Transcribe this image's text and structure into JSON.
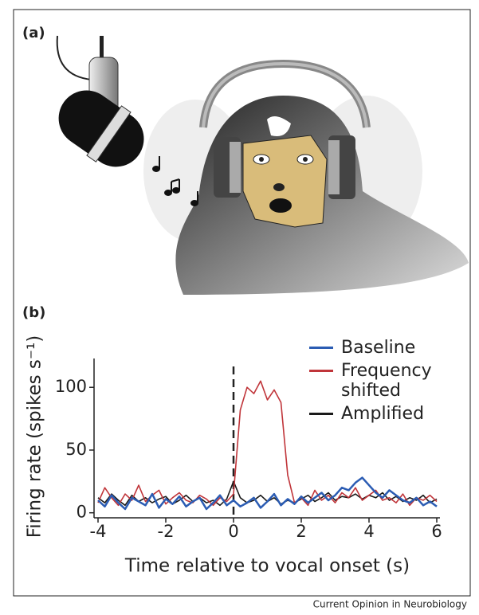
{
  "panel_a_label": "(a)",
  "panel_b_label": "(b)",
  "footer": "Current Opinion in Neurobiology",
  "chart_data": {
    "type": "line",
    "x_label": "Time relative to vocal onset (s)",
    "y_label": "Firing rate (spikes s⁻¹)",
    "x": [
      -4,
      -3.8,
      -3.6,
      -3.4,
      -3.2,
      -3,
      -2.8,
      -2.6,
      -2.4,
      -2.2,
      -2,
      -1.8,
      -1.6,
      -1.4,
      -1.2,
      -1,
      -0.8,
      -0.6,
      -0.4,
      -0.2,
      0,
      0.2,
      0.4,
      0.6,
      0.8,
      1,
      1.2,
      1.4,
      1.6,
      1.8,
      2,
      2.2,
      2.4,
      2.6,
      2.8,
      3,
      3.2,
      3.4,
      3.6,
      3.8,
      4,
      4.2,
      4.4,
      4.6,
      4.8,
      5,
      5.2,
      5.4,
      5.6,
      5.8,
      6
    ],
    "series": [
      {
        "name": "Baseline",
        "color": "#2b5cb3",
        "values": [
          10,
          5,
          14,
          8,
          3,
          12,
          9,
          6,
          15,
          4,
          11,
          7,
          13,
          5,
          9,
          12,
          3,
          8,
          14,
          6,
          10,
          5,
          8,
          12,
          4,
          9,
          15,
          6,
          11,
          7,
          13,
          8,
          12,
          16,
          10,
          14,
          20,
          18,
          24,
          28,
          22,
          16,
          12,
          18,
          14,
          10,
          8,
          12,
          6,
          9,
          5
        ]
      },
      {
        "name": "Frequency shifted",
        "color": "#c0353a",
        "values": [
          8,
          20,
          12,
          6,
          15,
          10,
          22,
          9,
          14,
          18,
          7,
          12,
          16,
          10,
          8,
          14,
          11,
          6,
          12,
          9,
          15,
          82,
          100,
          95,
          105,
          90,
          98,
          88,
          30,
          8,
          12,
          6,
          18,
          10,
          14,
          8,
          16,
          12,
          20,
          10,
          14,
          18,
          10,
          12,
          8,
          15,
          6,
          12,
          10,
          14,
          9
        ]
      },
      {
        "name": "Amplified",
        "color": "#1a1a1a",
        "values": [
          12,
          8,
          15,
          10,
          6,
          14,
          9,
          12,
          8,
          11,
          13,
          7,
          10,
          14,
          9,
          12,
          8,
          10,
          6,
          11,
          25,
          12,
          8,
          10,
          14,
          9,
          12,
          7,
          10,
          8,
          11,
          14,
          9,
          12,
          16,
          10,
          13,
          12,
          15,
          11,
          14,
          12,
          16,
          10,
          13,
          9,
          12,
          10,
          14,
          8,
          11
        ]
      }
    ],
    "xlim": [
      -4,
      6
    ],
    "xticks": [
      -4,
      -2,
      0,
      2,
      4,
      6
    ],
    "ylim": [
      -4,
      123
    ],
    "yticks": [
      0,
      50,
      100
    ],
    "vline": 0,
    "legend": "top-right"
  }
}
